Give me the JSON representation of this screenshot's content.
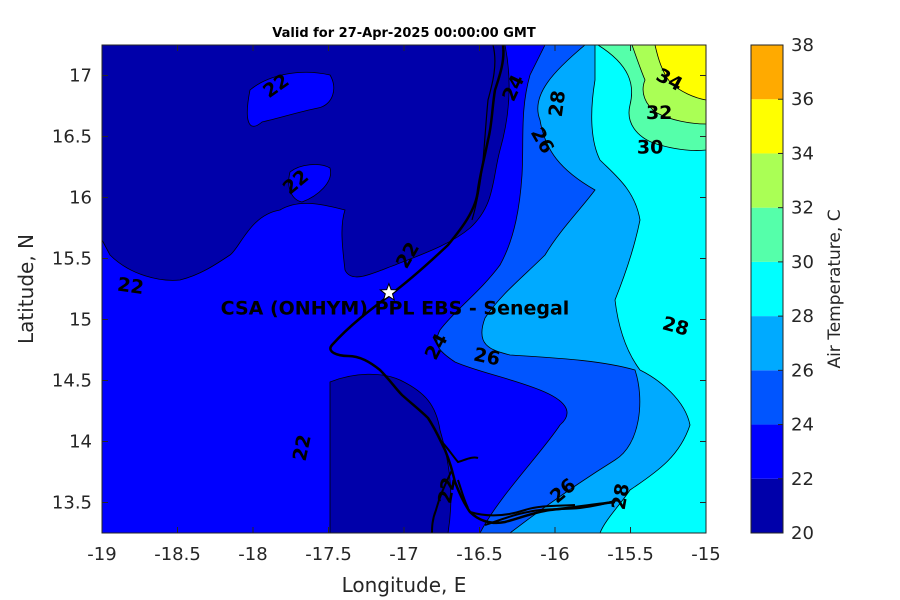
{
  "chart_data": {
    "type": "contour",
    "title": "Valid for 27-Apr-2025 00:00:00 GMT",
    "xlabel": "Longitude, E",
    "ylabel": "Latitude, N",
    "xlim": [
      -19,
      -15
    ],
    "ylim": [
      13.25,
      17.25
    ],
    "xticks": [
      -19,
      -18.5,
      -18,
      -17.5,
      -17,
      -16.5,
      -16,
      -15.5,
      -15
    ],
    "yticks": [
      13.5,
      14,
      14.5,
      15,
      15.5,
      16,
      16.5,
      17
    ],
    "colorbar": {
      "label": "Air Temperature, C",
      "levels": [
        20,
        22,
        24,
        26,
        28,
        30,
        32,
        34,
        36,
        38
      ],
      "colors": [
        "#0000aa",
        "#0000ff",
        "#0055ff",
        "#00aaff",
        "#00ffff",
        "#55ffaa",
        "#aaff55",
        "#ffff00",
        "#ffaa00",
        "#ff5500"
      ]
    },
    "contour_labels": [
      {
        "text": "22",
        "lon": -17.85,
        "lat": 16.92,
        "angle": -35
      },
      {
        "text": "22",
        "lon": -17.72,
        "lat": 16.13,
        "angle": -40
      },
      {
        "text": "22",
        "lon": -18.81,
        "lat": 15.28,
        "angle": 8
      },
      {
        "text": "22",
        "lon": -17.68,
        "lat": 13.95,
        "angle": -78
      },
      {
        "text": "22",
        "lon": -16.98,
        "lat": 15.53,
        "angle": -60
      },
      {
        "text": "22",
        "lon": -16.72,
        "lat": 13.6,
        "angle": -80
      },
      {
        "text": "24",
        "lon": -16.28,
        "lat": 16.9,
        "angle": -65
      },
      {
        "text": "24",
        "lon": -16.79,
        "lat": 14.78,
        "angle": -62
      },
      {
        "text": "26",
        "lon": -16.08,
        "lat": 16.47,
        "angle": 60
      },
      {
        "text": "26",
        "lon": -16.45,
        "lat": 14.7,
        "angle": 12
      },
      {
        "text": "26",
        "lon": -15.95,
        "lat": 13.6,
        "angle": -40
      },
      {
        "text": "28",
        "lon": -15.99,
        "lat": 16.77,
        "angle": -82
      },
      {
        "text": "28",
        "lon": -15.2,
        "lat": 14.95,
        "angle": 15
      },
      {
        "text": "28",
        "lon": -15.57,
        "lat": 13.55,
        "angle": -80
      },
      {
        "text": "30",
        "lon": -15.37,
        "lat": 16.42,
        "angle": 0
      },
      {
        "text": "32",
        "lon": -15.31,
        "lat": 16.7,
        "angle": 0
      },
      {
        "text": "34",
        "lon": -15.24,
        "lat": 16.97,
        "angle": 28
      }
    ],
    "station": {
      "name": "CSA (ONHYM) PPL EBS  - Senegal",
      "lon": -17.1,
      "lat": 15.22
    }
  }
}
